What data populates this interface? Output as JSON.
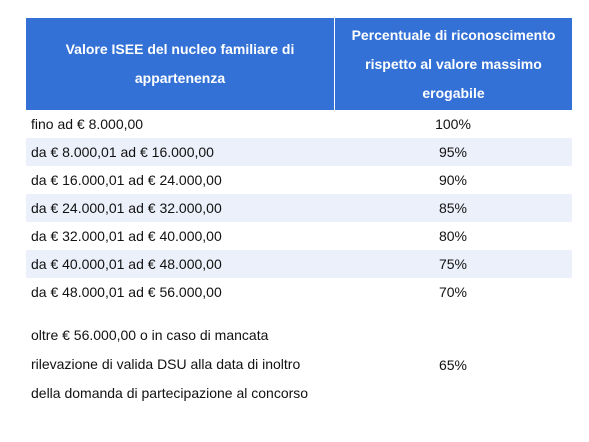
{
  "table": {
    "header": {
      "col1": "Valore ISEE del nucleo familiare di appartenenza",
      "col2": "Percentuale di riconoscimento rispetto al valore massimo erogabile"
    },
    "rows": [
      {
        "range": "fino ad € 8.000,00",
        "percent": "100%"
      },
      {
        "range": "da € 8.000,01 ad € 16.000,00",
        "percent": "95%"
      },
      {
        "range": "da € 16.000,01 ad € 24.000,00",
        "percent": "90%"
      },
      {
        "range": "da € 24.000,01 ad € 32.000,00",
        "percent": "85%"
      },
      {
        "range": "da € 32.000,01 ad € 40.000,00",
        "percent": "80%"
      },
      {
        "range": "da € 40.000,01 ad € 48.000,00",
        "percent": "75%"
      },
      {
        "range": "da € 48.000,01 ad € 56.000,00",
        "percent": "70%"
      },
      {
        "range": "oltre € 56.000,00 o in caso di mancata rilevazione di valida DSU alla data di inoltro della domanda di partecipazione al concorso",
        "percent": "65%"
      }
    ]
  },
  "colors": {
    "header_bg": "#3371d6",
    "header_text": "#ffffff",
    "alt_row_bg": "#ecf0fa"
  }
}
